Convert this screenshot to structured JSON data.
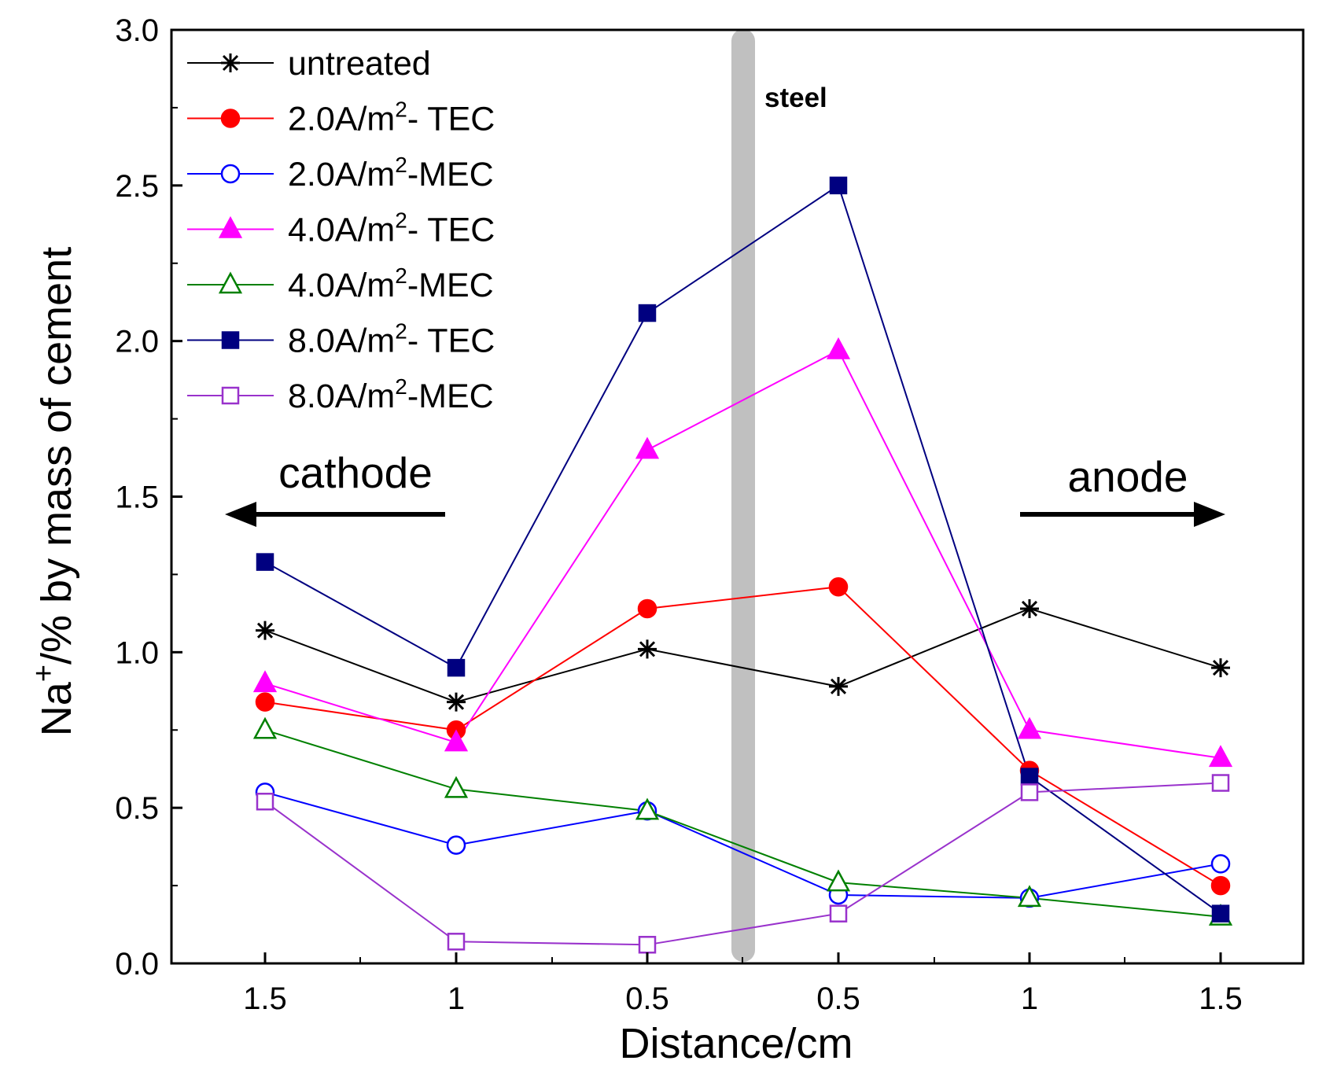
{
  "chart_data": {
    "type": "line",
    "title": "",
    "xlabel": "Distance/cm",
    "ylabel_base": "Na",
    "ylabel_sup": "+",
    "ylabel_rest": "/% by mass of cement",
    "ylim": [
      0.0,
      3.0
    ],
    "yticks": [
      0.0,
      0.5,
      1.0,
      1.5,
      2.0,
      2.5,
      3.0
    ],
    "ytick_labels": [
      "0.0",
      "0.5",
      "1.0",
      "1.5",
      "2.0",
      "2.5",
      "3.0"
    ],
    "x": [
      -1.5,
      -1.0,
      -0.5,
      0.5,
      1.0,
      1.5
    ],
    "x_tick_labels": [
      "1.5",
      "1",
      "0.5",
      "0.5",
      "1",
      "1.5"
    ],
    "grid": false,
    "legend_position": "top-left",
    "series": [
      {
        "name": "untreated",
        "label_base": "untreated",
        "label_sup": "",
        "label_rest": "",
        "color": "#000000",
        "marker": "star",
        "values": [
          1.07,
          0.84,
          1.01,
          0.89,
          1.14,
          0.95
        ]
      },
      {
        "name": "2.0A/m2- TEC",
        "label_base": "2.0A/m",
        "label_sup": "2",
        "label_rest": "- TEC",
        "color": "#ff0000",
        "marker": "circle-filled",
        "values": [
          0.84,
          0.75,
          1.14,
          1.21,
          0.62,
          0.25
        ]
      },
      {
        "name": "2.0A/m2-MEC",
        "label_base": "2.0A/m",
        "label_sup": "2",
        "label_rest": "-MEC",
        "color": "#0000ff",
        "marker": "circle-open",
        "values": [
          0.55,
          0.38,
          0.49,
          0.22,
          0.21,
          0.32
        ]
      },
      {
        "name": "4.0A/m2- TEC",
        "label_base": "4.0A/m",
        "label_sup": "2",
        "label_rest": "- TEC",
        "color": "#ff00ff",
        "marker": "triangle-filled",
        "values": [
          0.9,
          0.71,
          1.65,
          1.97,
          0.75,
          0.66
        ]
      },
      {
        "name": "4.0A/m2-MEC",
        "label_base": "4.0A/m",
        "label_sup": "2",
        "label_rest": "-MEC",
        "color": "#008000",
        "marker": "triangle-open",
        "values": [
          0.75,
          0.56,
          0.49,
          0.26,
          0.21,
          0.15
        ]
      },
      {
        "name": "8.0A/m2- TEC",
        "label_base": "8.0A/m",
        "label_sup": "2",
        "label_rest": "- TEC",
        "color": "#000080",
        "marker": "square-filled",
        "values": [
          1.29,
          0.95,
          2.09,
          2.5,
          0.6,
          0.16
        ]
      },
      {
        "name": "8.0A/m2-MEC",
        "label_base": "8.0A/m",
        "label_sup": "2",
        "label_rest": "-MEC",
        "color": "#9932cc",
        "marker": "square-open",
        "values": [
          0.52,
          0.07,
          0.06,
          0.16,
          0.55,
          0.58
        ]
      }
    ],
    "annotations": {
      "cathode": "cathode",
      "anode": "anode",
      "steel": "steel"
    },
    "steel_bar_color": "#c0c0c0"
  }
}
